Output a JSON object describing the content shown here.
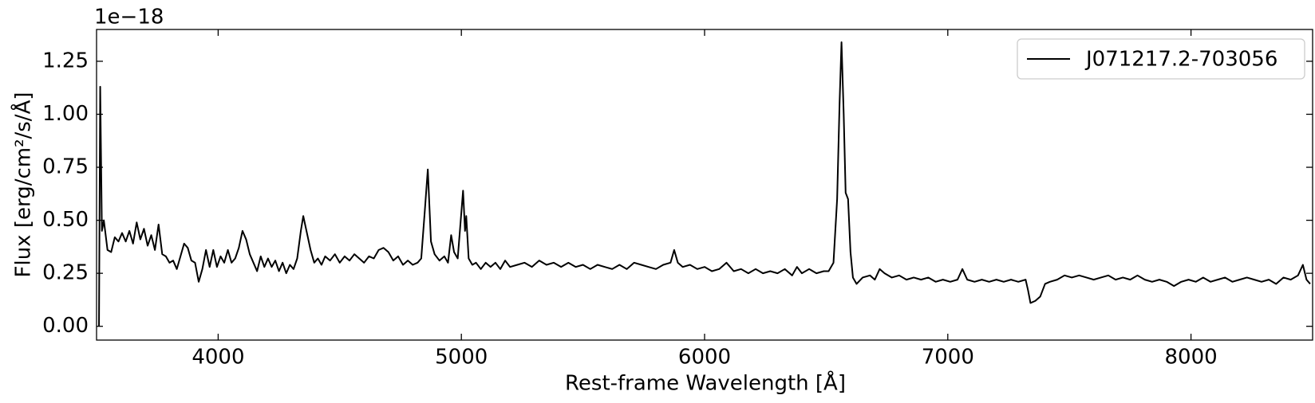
{
  "chart_data": {
    "type": "line",
    "y_offset_label": "1e−18",
    "xlabel": "Rest-frame Wavelength [Å]",
    "ylabel": "Flux [erg/cm²/s/Å]",
    "xlim": [
      3500,
      8500
    ],
    "ylim": [
      -0.065,
      1.4
    ],
    "xticks": [
      4000,
      5000,
      6000,
      7000,
      8000
    ],
    "yticks": [
      {
        "value": 0,
        "label": "0.00"
      },
      {
        "value": 0.25,
        "label": "0.25"
      },
      {
        "value": 0.5,
        "label": "0.50"
      },
      {
        "value": 0.75,
        "label": "0.75"
      },
      {
        "value": 1,
        "label": "1.00"
      },
      {
        "value": 1.25,
        "label": "1.25"
      }
    ],
    "legend": "upper right",
    "x": [
      3510,
      3515,
      3522,
      3530,
      3545,
      3560,
      3575,
      3590,
      3605,
      3620,
      3635,
      3650,
      3665,
      3680,
      3695,
      3710,
      3725,
      3740,
      3755,
      3770,
      3785,
      3800,
      3815,
      3830,
      3845,
      3860,
      3875,
      3890,
      3905,
      3920,
      3935,
      3950,
      3965,
      3980,
      3995,
      4010,
      4025,
      4040,
      4055,
      4070,
      4085,
      4100,
      4115,
      4130,
      4145,
      4160,
      4175,
      4190,
      4205,
      4220,
      4235,
      4250,
      4265,
      4280,
      4295,
      4310,
      4325,
      4340,
      4350,
      4365,
      4380,
      4395,
      4410,
      4425,
      4440,
      4460,
      4480,
      4500,
      4520,
      4540,
      4560,
      4580,
      4600,
      4620,
      4640,
      4660,
      4680,
      4700,
      4720,
      4740,
      4760,
      4780,
      4800,
      4820,
      4835,
      4850,
      4862,
      4875,
      4890,
      4910,
      4930,
      4945,
      4958,
      4970,
      4985,
      5007,
      5015,
      5020,
      5030,
      5045,
      5060,
      5080,
      5100,
      5120,
      5140,
      5160,
      5180,
      5200,
      5230,
      5260,
      5290,
      5320,
      5350,
      5380,
      5410,
      5440,
      5470,
      5500,
      5530,
      5560,
      5590,
      5620,
      5650,
      5680,
      5710,
      5740,
      5770,
      5800,
      5830,
      5860,
      5875,
      5890,
      5910,
      5940,
      5970,
      6000,
      6030,
      6060,
      6090,
      6120,
      6150,
      6180,
      6210,
      6240,
      6270,
      6300,
      6330,
      6360,
      6380,
      6400,
      6430,
      6460,
      6490,
      6510,
      6530,
      6545,
      6555,
      6563,
      6572,
      6580,
      6590,
      6600,
      6610,
      6625,
      6650,
      6680,
      6700,
      6720,
      6740,
      6770,
      6800,
      6830,
      6860,
      6890,
      6920,
      6950,
      6980,
      7010,
      7040,
      7060,
      7080,
      7110,
      7140,
      7170,
      7200,
      7230,
      7260,
      7290,
      7320,
      7330,
      7340,
      7360,
      7380,
      7400,
      7420,
      7450,
      7480,
      7510,
      7540,
      7570,
      7600,
      7630,
      7660,
      7690,
      7720,
      7750,
      7780,
      7810,
      7840,
      7870,
      7900,
      7930,
      7960,
      7990,
      8020,
      8050,
      8080,
      8110,
      8140,
      8170,
      8200,
      8230,
      8260,
      8290,
      8320,
      8350,
      8380,
      8410,
      8440,
      8460,
      8475,
      8490
    ],
    "series": [
      {
        "name": "J071217.2-703056",
        "color": "#000000",
        "values": [
          0.0,
          1.13,
          0.45,
          0.5,
          0.36,
          0.35,
          0.42,
          0.4,
          0.44,
          0.4,
          0.45,
          0.39,
          0.49,
          0.41,
          0.46,
          0.38,
          0.43,
          0.36,
          0.48,
          0.34,
          0.33,
          0.3,
          0.31,
          0.27,
          0.33,
          0.39,
          0.37,
          0.31,
          0.3,
          0.21,
          0.27,
          0.36,
          0.28,
          0.36,
          0.28,
          0.33,
          0.3,
          0.36,
          0.3,
          0.32,
          0.37,
          0.45,
          0.41,
          0.34,
          0.3,
          0.26,
          0.33,
          0.28,
          0.32,
          0.28,
          0.31,
          0.26,
          0.3,
          0.25,
          0.29,
          0.27,
          0.32,
          0.45,
          0.52,
          0.44,
          0.36,
          0.3,
          0.32,
          0.29,
          0.33,
          0.31,
          0.34,
          0.3,
          0.33,
          0.31,
          0.34,
          0.32,
          0.3,
          0.33,
          0.32,
          0.36,
          0.37,
          0.35,
          0.31,
          0.33,
          0.29,
          0.31,
          0.29,
          0.3,
          0.32,
          0.55,
          0.74,
          0.4,
          0.34,
          0.31,
          0.33,
          0.3,
          0.43,
          0.35,
          0.32,
          0.64,
          0.45,
          0.52,
          0.32,
          0.29,
          0.3,
          0.27,
          0.3,
          0.28,
          0.3,
          0.27,
          0.31,
          0.28,
          0.29,
          0.3,
          0.28,
          0.31,
          0.29,
          0.3,
          0.28,
          0.3,
          0.28,
          0.29,
          0.27,
          0.29,
          0.28,
          0.27,
          0.29,
          0.27,
          0.3,
          0.29,
          0.28,
          0.27,
          0.29,
          0.3,
          0.36,
          0.3,
          0.28,
          0.29,
          0.27,
          0.28,
          0.26,
          0.27,
          0.3,
          0.26,
          0.27,
          0.25,
          0.27,
          0.25,
          0.26,
          0.25,
          0.27,
          0.24,
          0.28,
          0.25,
          0.27,
          0.25,
          0.26,
          0.26,
          0.3,
          0.6,
          1.05,
          1.34,
          1.0,
          0.63,
          0.6,
          0.35,
          0.23,
          0.2,
          0.23,
          0.24,
          0.22,
          0.27,
          0.25,
          0.23,
          0.24,
          0.22,
          0.23,
          0.22,
          0.23,
          0.21,
          0.22,
          0.21,
          0.22,
          0.27,
          0.22,
          0.21,
          0.22,
          0.21,
          0.22,
          0.21,
          0.22,
          0.21,
          0.22,
          0.17,
          0.11,
          0.12,
          0.14,
          0.2,
          0.21,
          0.22,
          0.24,
          0.23,
          0.24,
          0.23,
          0.22,
          0.23,
          0.24,
          0.22,
          0.23,
          0.22,
          0.24,
          0.22,
          0.21,
          0.22,
          0.21,
          0.19,
          0.21,
          0.22,
          0.21,
          0.23,
          0.21,
          0.22,
          0.23,
          0.21,
          0.22,
          0.23,
          0.22,
          0.21,
          0.22,
          0.2,
          0.23,
          0.22,
          0.24,
          0.29,
          0.22,
          0.2
        ]
      }
    ]
  }
}
